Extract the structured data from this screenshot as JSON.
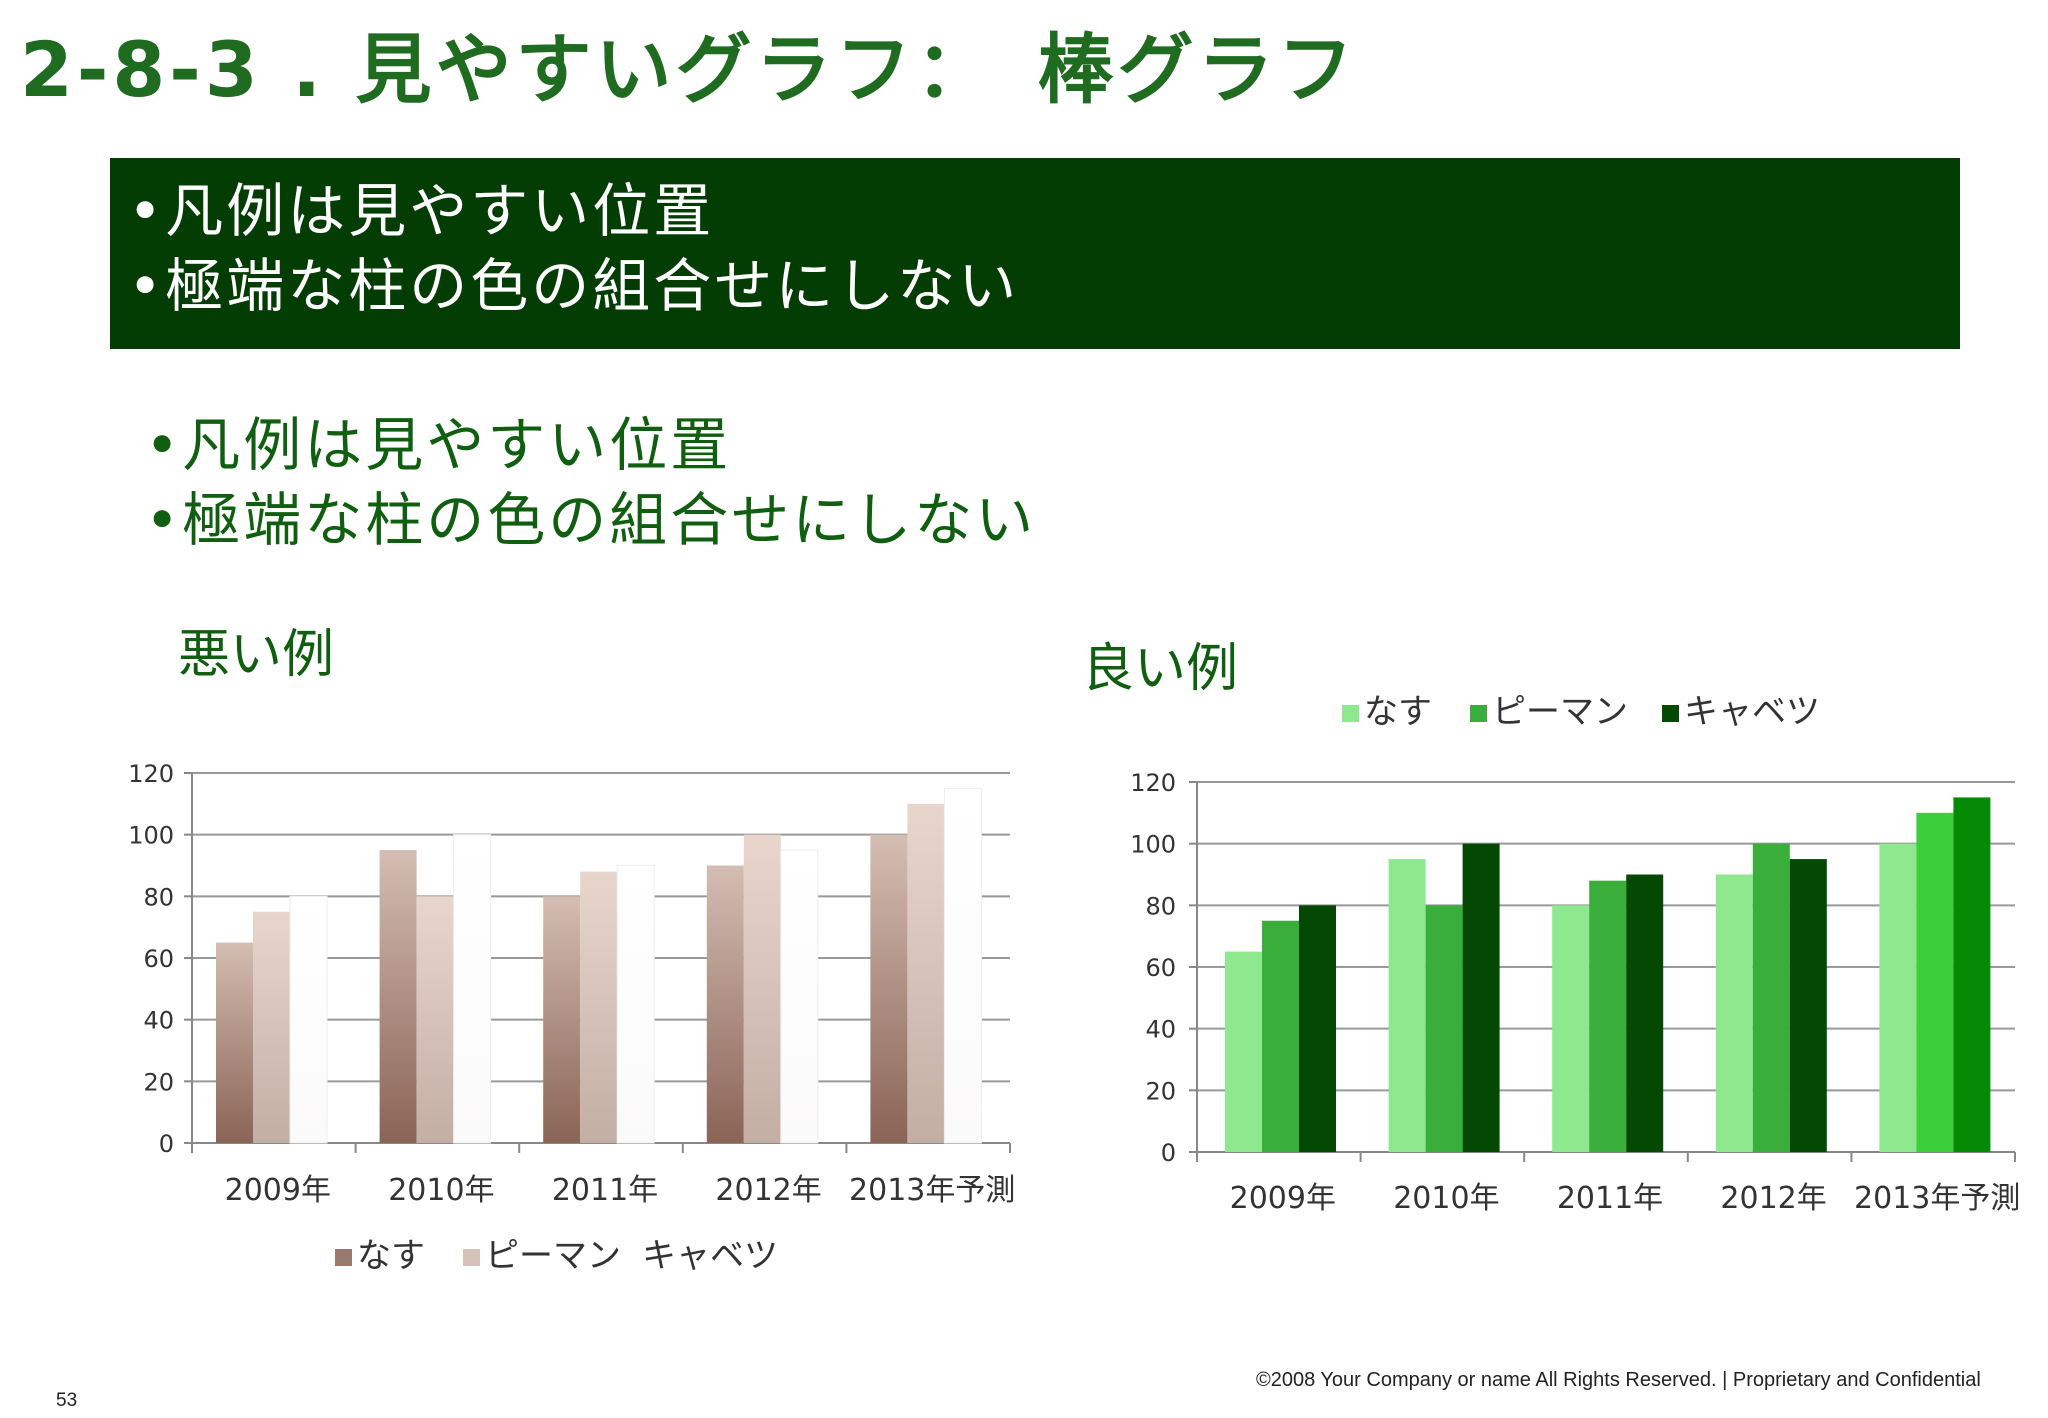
{
  "slide": {
    "title": "2-8-3 . 見やすいグラフ：　棒グラフ",
    "banner_points": [
      "•凡例は見やすい位置",
      "•極端な柱の色の組合せにしない"
    ],
    "body_points": [
      "•凡例は見やすい位置",
      "•極端な柱の色の組合せにしない"
    ],
    "bad_label": "悪い例",
    "good_label": "良い例",
    "footer": "©2008 Your Company or name  All Rights Reserved. | Proprietary and Confidential",
    "page_number": "53"
  },
  "colors": {
    "title": "#1f6b1f",
    "banner_bg": "#033d03",
    "good_series": [
      "#8ee88e",
      "#3aae3a",
      "#034903"
    ],
    "good_series_last_group": [
      "#8ee88e",
      "#3ccf3c",
      "#058a05"
    ],
    "bad_series": [
      "#8a6a5e",
      "#d6c2b8",
      "#ffffff"
    ]
  },
  "chart_data": [
    {
      "id": "bad",
      "type": "bar",
      "categories": [
        "2009年",
        "2010年",
        "2011年",
        "2012年",
        "2013年予測"
      ],
      "series": [
        {
          "name": "なす",
          "values": [
            65,
            95,
            80,
            90,
            100
          ]
        },
        {
          "name": "ピーマン",
          "values": [
            75,
            80,
            88,
            100,
            110
          ]
        },
        {
          "name": "キャベツ",
          "values": [
            80,
            100,
            90,
            95,
            115
          ]
        }
      ],
      "yticks": [
        "0",
        "20",
        "40",
        "60",
        "80",
        "100",
        "120"
      ],
      "ylim": [
        0,
        120
      ],
      "grid": true,
      "legend": "bottom"
    },
    {
      "id": "good",
      "type": "bar",
      "categories": [
        "2009年",
        "2010年",
        "2011年",
        "2012年",
        "2013年予測"
      ],
      "series": [
        {
          "name": "なす",
          "values": [
            65,
            95,
            80,
            90,
            100
          ]
        },
        {
          "name": "ピーマン",
          "values": [
            75,
            80,
            88,
            100,
            110
          ]
        },
        {
          "name": "キャベツ",
          "values": [
            80,
            100,
            90,
            95,
            115
          ]
        }
      ],
      "yticks": [
        "0",
        "20",
        "40",
        "60",
        "80",
        "100",
        "120"
      ],
      "ylim": [
        0,
        120
      ],
      "grid": true,
      "legend": "top"
    }
  ]
}
